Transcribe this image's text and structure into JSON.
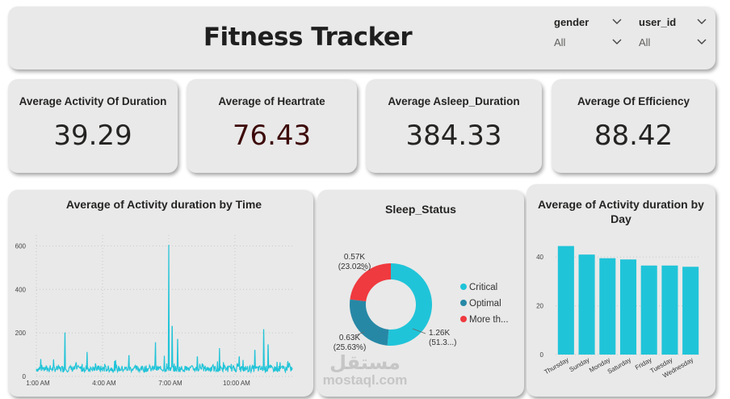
{
  "header": {
    "title": "Fitness Tracker",
    "slicers": [
      {
        "label": "gender",
        "value": "All"
      },
      {
        "label": "user_id",
        "value": "All"
      }
    ]
  },
  "kpis": [
    {
      "title": "Average Activity Of Duration",
      "value": "39.29",
      "color": "#252423"
    },
    {
      "title": "Average of Heartrate",
      "value": "76.43",
      "color": "#3d0a0a"
    },
    {
      "title": "Average Asleep_Duration",
      "value": "384.33",
      "color": "#252423"
    },
    {
      "title": "Average Of Efficiency",
      "value": "88.42",
      "color": "#252423"
    }
  ],
  "watermark": {
    "arabic": "مستقل",
    "latin": "mostaql.com"
  },
  "chart_data": [
    {
      "type": "line",
      "title": "Average of Activity duration by Time",
      "x_ticks": [
        "1:00 AM",
        "4:00 AM",
        "7:00 AM",
        "10:00 AM"
      ],
      "y_ticks": [
        0,
        200,
        400,
        600
      ],
      "ylim": [
        0,
        650
      ],
      "xlim": [
        0,
        11.6
      ],
      "color": "#20c4d8",
      "spikes": [
        {
          "x": 0.2,
          "y": 80
        },
        {
          "x": 1.3,
          "y": 200
        },
        {
          "x": 2.3,
          "y": 110
        },
        {
          "x": 4.2,
          "y": 95
        },
        {
          "x": 5.4,
          "y": 155
        },
        {
          "x": 5.8,
          "y": 95
        },
        {
          "x": 6.0,
          "y": 605
        },
        {
          "x": 6.15,
          "y": 230
        },
        {
          "x": 6.4,
          "y": 170
        },
        {
          "x": 7.3,
          "y": 90
        },
        {
          "x": 8.3,
          "y": 130
        },
        {
          "x": 9.2,
          "y": 90
        },
        {
          "x": 9.9,
          "y": 120
        },
        {
          "x": 10.3,
          "y": 215
        },
        {
          "x": 10.5,
          "y": 145
        },
        {
          "x": 11.4,
          "y": 70
        }
      ],
      "baseline": [
        20,
        50
      ]
    },
    {
      "type": "pie",
      "title": "Sleep_Status",
      "slices": [
        {
          "name": "Critical",
          "label": "1.26K",
          "pct_label": "(51.3...)",
          "value": 51.35,
          "color": "#20c4d8"
        },
        {
          "name": "Optimal",
          "label": "0.63K",
          "pct_label": "(25.63%)",
          "value": 25.63,
          "color": "#2788a6"
        },
        {
          "name": "More th...",
          "label": "0.57K",
          "pct_label": "(23.02%)",
          "value": 23.02,
          "color": "#ef3a3f"
        }
      ]
    },
    {
      "type": "bar",
      "title": "Average of Activity duration by Day",
      "categories": [
        "Thursday",
        "Sunday",
        "Monday",
        "Saturday",
        "Friday",
        "Tuesday",
        "Wednesday"
      ],
      "values": [
        44.5,
        41,
        39.5,
        39,
        36.5,
        36.5,
        36
      ],
      "y_ticks": [
        0,
        20,
        40
      ],
      "ylim": [
        0,
        50
      ],
      "color": "#20c4d8"
    }
  ]
}
